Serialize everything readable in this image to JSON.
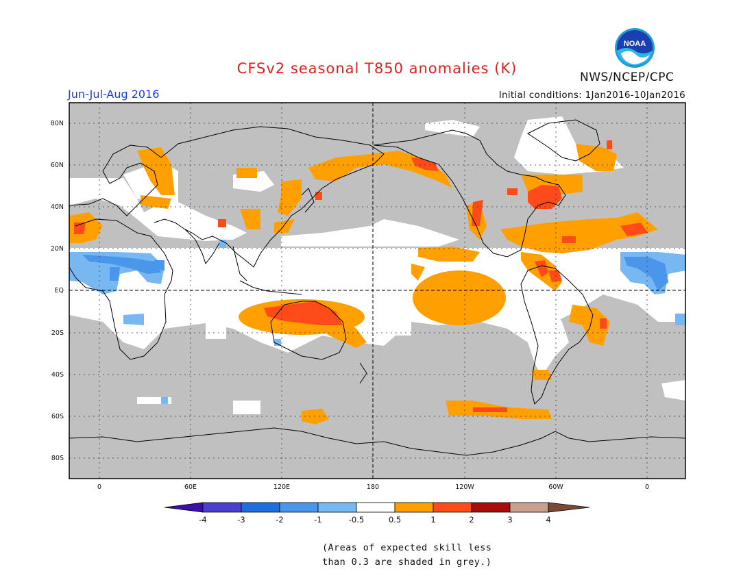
{
  "header": {
    "title": "CFSv2 seasonal T850 anomalies (K)",
    "season": "Jun-Jul-Aug 2016",
    "initial_conditions": "Initial conditions: 1Jan2016-10Jan2016",
    "agency": "NWS/NCEP/CPC",
    "logo_text": "NOAA"
  },
  "map": {
    "lat_labels": [
      "80N",
      "60N",
      "40N",
      "20N",
      "EQ",
      "20S",
      "40S",
      "60S",
      "80S"
    ],
    "lon_labels": [
      "0",
      "60E",
      "120E",
      "180",
      "120W",
      "60W",
      "0"
    ],
    "colors": {
      "grey": "#c0c0c0",
      "orange": "#ffa000",
      "red_orange": "#ff4a1a",
      "dark_red": "#b01010",
      "blue_light": "#78b8f2",
      "blue_mid": "#4a96ea",
      "land_outline": "#000000"
    }
  },
  "colorbar": {
    "labels": [
      "-4",
      "-3",
      "-2",
      "-1",
      "-0.5",
      "0.5",
      "1",
      "2",
      "3",
      "4"
    ],
    "colors": [
      "#3a10a8",
      "#4a3fcf",
      "#1f6ee0",
      "#4a96ea",
      "#78b8f2",
      "#ffffff",
      "#ffa000",
      "#ff4a1a",
      "#a80c0c",
      "#c8a090",
      "#7a4a38"
    ]
  },
  "note": {
    "line1": "(Areas of expected skill less",
    "line2": "than 0.3 are shaded in grey.)"
  }
}
